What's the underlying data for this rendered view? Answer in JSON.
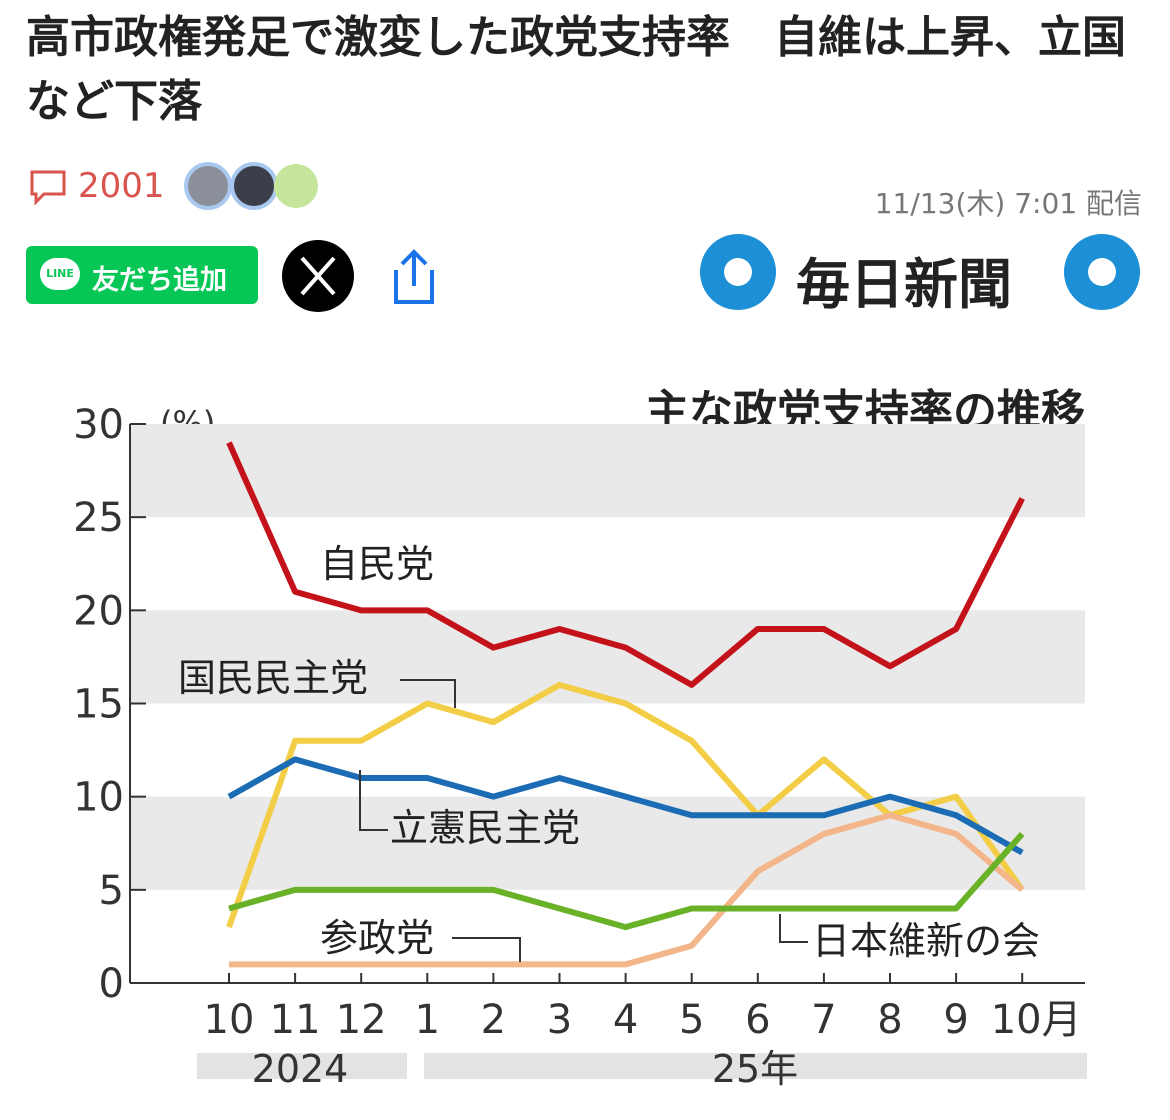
{
  "header": {
    "title": "高市政権発足で激変した政党支持率　自維は上昇、立国など下落",
    "comments": "2001",
    "date": "11/13(木) 7:01 配信",
    "line_icon": "LINE",
    "line_button": "友だち追加",
    "publisher": "毎日新聞"
  },
  "chart_data": {
    "type": "line",
    "title": "主な政党支持率の推移",
    "y_unit": "(%)",
    "categories": [
      "10",
      "11",
      "12",
      "1",
      "2",
      "3",
      "4",
      "5",
      "6",
      "7",
      "8",
      "9",
      "10月"
    ],
    "periods": [
      "2024",
      "25年"
    ],
    "ylim": [
      0,
      30
    ],
    "yticks": [
      0,
      5,
      10,
      15,
      20,
      25,
      30
    ],
    "grid": "bands",
    "series": [
      {
        "name": "自民党",
        "color": "#c4121a",
        "values": [
          29,
          21,
          20,
          20,
          18,
          19,
          18,
          16,
          19,
          19,
          17,
          19,
          26
        ]
      },
      {
        "name": "国民民主党",
        "color": "#f2cd45",
        "values": [
          3,
          13,
          13,
          15,
          14,
          16,
          15,
          13,
          9,
          12,
          9,
          10,
          5
        ]
      },
      {
        "name": "立憲民主党",
        "color": "#1b6cb4",
        "values": [
          10,
          12,
          11,
          11,
          10,
          11,
          10,
          9,
          9,
          9,
          10,
          9,
          7
        ]
      },
      {
        "name": "参政党",
        "color": "#f3b68a",
        "values": [
          1,
          1,
          1,
          1,
          1,
          1,
          1,
          2,
          6,
          8,
          9,
          8,
          5
        ]
      },
      {
        "name": "日本維新の会",
        "color": "#69b227",
        "values": [
          4,
          5,
          5,
          5,
          5,
          4,
          3,
          4,
          4,
          4,
          4,
          4,
          8
        ]
      }
    ]
  }
}
